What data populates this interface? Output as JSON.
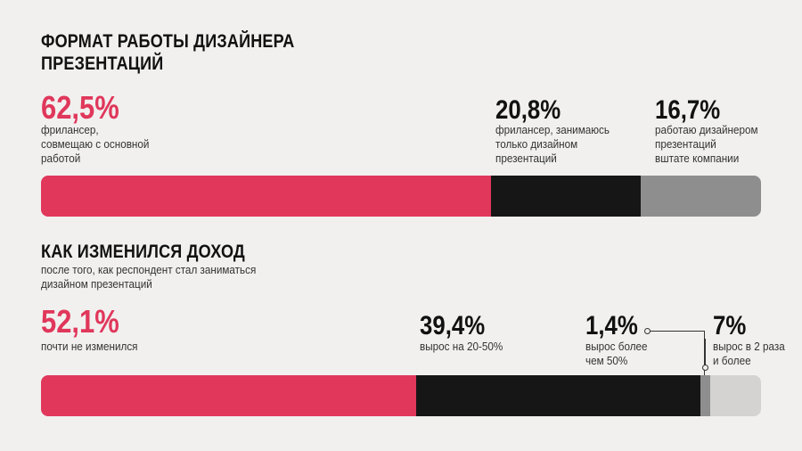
{
  "chart_data": [
    {
      "type": "bar",
      "title": "ФОРМАТ РАБОТЫ ДИЗАЙНЕРА\nПРЕЗЕНТАЦИЙ",
      "subtitle": "",
      "series": [
        {
          "value": 62.5,
          "label": "62,5%",
          "description": "фрилансер,\nсовмещаю с основной\nработой",
          "color": "#e0375b"
        },
        {
          "value": 20.8,
          "label": "20,8%",
          "description": "фрилансер, занимаюсь\nтолько дизайном\nпрезентаций",
          "color": "#161616"
        },
        {
          "value": 16.7,
          "label": "16,7%",
          "description": "работаю дизайнером\nпрезентаций\nвштате компании",
          "color": "#8e8e8e"
        }
      ]
    },
    {
      "type": "bar",
      "title": "КАК ИЗМЕНИЛСЯ ДОХОД",
      "subtitle": "после того, как респондент стал заниматься\nдизайном презентаций",
      "series": [
        {
          "value": 52.1,
          "label": "52,1%",
          "description": "почти не изменился",
          "color": "#e0375b"
        },
        {
          "value": 39.4,
          "label": "39,4%",
          "description": "вырос на 20-50%",
          "color": "#161616"
        },
        {
          "value": 1.4,
          "label": "1,4%",
          "description": "вырос более\nчем 50%",
          "color": "#8e8e8e"
        },
        {
          "value": 7,
          "label": "7%",
          "description": "вырос в 2 раза\nи более",
          "color": "#d4d3d2"
        }
      ]
    }
  ]
}
